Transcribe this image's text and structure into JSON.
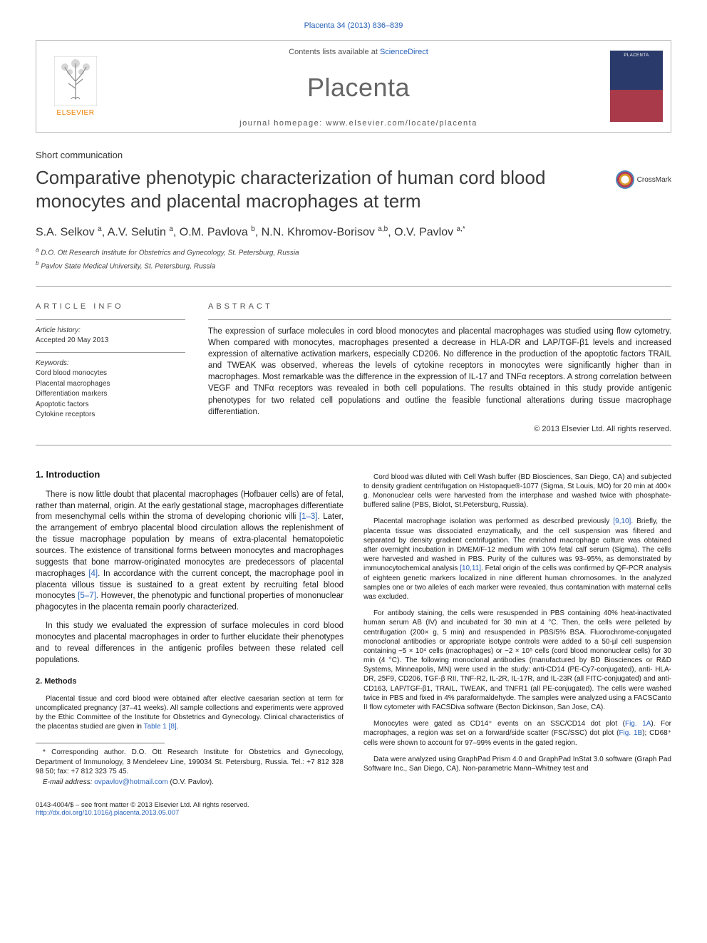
{
  "colors": {
    "link": "#2962b8",
    "text": "#1a1a1a",
    "muted": "#555555",
    "elsevier_orange": "#ee7d00",
    "rule": "#999999"
  },
  "header": {
    "citation": "Placenta 34 (2013) 836–839",
    "contents_prefix": "Contents lists available at ",
    "contents_link": "ScienceDirect",
    "journal": "Placenta",
    "homepage_prefix": "journal homepage: ",
    "homepage_url": "www.elsevier.com/locate/placenta",
    "publisher": "ELSEVIER",
    "cover_label": "PLACENTA"
  },
  "article": {
    "type": "Short communication",
    "title": "Comparative phenotypic characterization of human cord blood monocytes and placental macrophages at term",
    "crossmark": "CrossMark",
    "authors_html": "S.A. Selkov <sup>a</sup>, A.V. Selutin <sup>a</sup>, O.M. Pavlova <sup>b</sup>, N.N. Khromov-Borisov <sup>a,b</sup>, O.V. Pavlov <sup>a,*</sup>",
    "affiliations": {
      "a": "D.O. Ott Research Institute for Obstetrics and Gynecology, St. Petersburg, Russia",
      "b": "Pavlov State Medical University, St. Petersburg, Russia"
    }
  },
  "info": {
    "heading": "ARTICLE INFO",
    "history_label": "Article history:",
    "history": "Accepted 20 May 2013",
    "keywords_label": "Keywords:",
    "keywords": [
      "Cord blood monocytes",
      "Placental macrophages",
      "Differentiation markers",
      "Apoptotic factors",
      "Cytokine receptors"
    ]
  },
  "abstract": {
    "heading": "ABSTRACT",
    "text": "The expression of surface molecules in cord blood monocytes and placental macrophages was studied using flow cytometry. When compared with monocytes, macrophages presented a decrease in HLA-DR and LAP/TGF-β1 levels and increased expression of alternative activation markers, especially CD206. No difference in the production of the apoptotic factors TRAIL and TWEAK was observed, whereas the levels of cytokine receptors in monocytes were significantly higher than in macrophages. Most remarkable was the difference in the expression of IL-17 and TNFα receptors. A strong correlation between VEGF and TNFα receptors was revealed in both cell populations. The results obtained in this study provide antigenic phenotypes for two related cell populations and outline the feasible functional alterations during tissue macrophage differentiation.",
    "copyright": "© 2013 Elsevier Ltd. All rights reserved."
  },
  "sections": {
    "intro_heading": "1. Introduction",
    "intro_p1": "There is now little doubt that placental macrophages (Hofbauer cells) are of fetal, rather than maternal, origin. At the early gestational stage, macrophages differentiate from mesenchymal cells within the stroma of developing chorionic villi [1–3]. Later, the arrangement of embryo placental blood circulation allows the replenishment of the tissue macrophage population by means of extra-placental hematopoietic sources. The existence of transitional forms between monocytes and macrophages suggests that bone marrow-originated monocytes are predecessors of placental macrophages [4]. In accordance with the current concept, the macrophage pool in placenta villous tissue is sustained to a great extent by recruiting fetal blood monocytes [5–7]. However, the phenotypic and functional properties of mononuclear phagocytes in the placenta remain poorly characterized.",
    "intro_p2": "In this study we evaluated the expression of surface molecules in cord blood monocytes and placental macrophages in order to further elucidate their phenotypes and to reveal differences in the antigenic profiles between these related cell populations.",
    "methods_heading": "2. Methods",
    "methods_p1": "Placental tissue and cord blood were obtained after elective caesarian section at term for uncomplicated pregnancy (37–41 weeks). All sample collections and experiments were approved by the Ethic Committee of the Institute for Obstetrics and Gynecology. Clinical characteristics of the placentas studied are given in Table 1 [8].",
    "methods_p2": "Cord blood was diluted with Cell Wash buffer (BD Biosciences, San Diego, CA) and subjected to density gradient centrifugation on Histopaque®-1077 (Sigma, St Louis, MO) for 20 min at 400× g. Mononuclear cells were harvested from the interphase and washed twice with phosphate-buffered saline (PBS, Biolot, St.Petersburg, Russia).",
    "methods_p3": "Placental macrophage isolation was performed as described previously [9,10]. Briefly, the placenta tissue was dissociated enzymatically, and the cell suspension was filtered and separated by density gradient centrifugation. The enriched macrophage culture was obtained after overnight incubation in DMEM/F-12 medium with 10% fetal calf serum (Sigma). The cells were harvested and washed in PBS. Purity of the cultures was 93–95%, as demonstrated by immunocytochemical analysis [10,11]. Fetal origin of the cells was confirmed by QF-PCR analysis of eighteen genetic markers localized in nine different human chromosomes. In the analyzed samples one or two alleles of each marker were revealed, thus contamination with maternal cells was excluded.",
    "methods_p4": "For antibody staining, the cells were resuspended in PBS containing 40% heat-inactivated human serum AB (IV) and incubated for 30 min at 4 °C. Then, the cells were pelleted by centrifugation (200× g, 5 min) and resuspended in PBS/5% BSA. Fluorochrome-conjugated monoclonal antibodies or appropriate isotype controls were added to a 50-µl cell suspension containing ~5 × 10⁴ cells (macrophages) or ~2 × 10⁵ cells (cord blood mononuclear cells) for 30 min (4 °C). The following monoclonal antibodies (manufactured by BD Biosciences or R&D Systems, Minneapolis, MN) were used in the study: anti-CD14 (PE-Cy7-conjugated), anti- HLA-DR, 25F9, CD206, TGF-β RII, TNF-R2, IL-2R, IL-17R, and IL-23R (all FITC-conjugated) and anti- CD163, LAP/TGF-β1, TRAIL, TWEAK, and TNFR1 (all PE-conjugated). The cells were washed twice in PBS and fixed in 4% paraformaldehyde. The samples were analyzed using a FACSCanto II flow cytometer with FACSDiva software (Becton Dickinson, San Jose, CA).",
    "methods_p5": "Monocytes were gated as CD14⁺ events on an SSC/CD14 dot plot (Fig. 1A). For macrophages, a region was set on a forward/side scatter (FSC/SSC) dot plot (Fig. 1B); CD68⁺ cells were shown to account for 97–99% events in the gated region.",
    "methods_p6": "Data were analyzed using GraphPad Prism 4.0 and GraphPad InStat 3.0 software (Graph Pad Software Inc., San Diego, CA). Non-parametric Mann–Whitney test and"
  },
  "footnotes": {
    "corr": "* Corresponding author. D.O. Ott Research Institute for Obstetrics and Gynecology, Department of Immunology, 3 Mendeleev Line, 199034 St. Petersburg, Russia. Tel.: +7 812 328 98 50; fax: +7 812 323 75 45.",
    "email_label": "E-mail address: ",
    "email": "ovpavlov@hotmail.com",
    "email_who": " (O.V. Pavlov)."
  },
  "footer": {
    "left_line1": "0143-4004/$ – see front matter © 2013 Elsevier Ltd. All rights reserved.",
    "left_line2": "http://dx.doi.org/10.1016/j.placenta.2013.05.007"
  }
}
